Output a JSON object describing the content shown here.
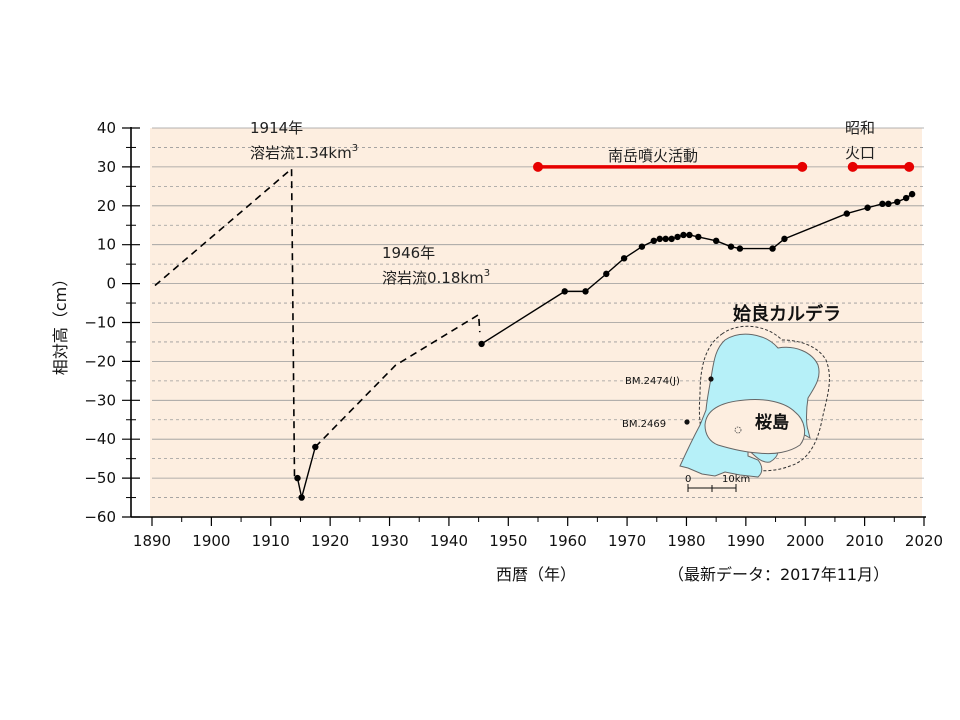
{
  "chart_data": {
    "type": "line",
    "x_range": [
      1890,
      2020
    ],
    "y_range": [
      -60,
      40
    ],
    "ylabel": "相対高（cm）",
    "xlabel": "西暦（年）",
    "note": "（最新データ：2017年11月）",
    "x_ticks": [
      1890,
      1900,
      1910,
      1920,
      1930,
      1940,
      1950,
      1960,
      1970,
      1980,
      1990,
      2000,
      2010,
      2020
    ],
    "y_ticks": [
      40,
      30,
      20,
      10,
      0,
      -10,
      -20,
      -30,
      -40,
      -50,
      -60
    ],
    "tick_label_text": {
      "x": [
        "1890",
        "1900",
        "1910",
        "1920",
        "1930",
        "1940",
        "1950",
        "1960",
        "1970",
        "1980",
        "1990",
        "2000",
        "2010",
        "2020"
      ],
      "y": [
        "40",
        "30",
        "20",
        "10",
        "0",
        "−10",
        "−20",
        "−30",
        "−40",
        "−50",
        "−60"
      ]
    },
    "dashed_segments": [
      [
        [
          1890.5,
          -0.5
        ],
        [
          1913.5,
          29.5
        ],
        [
          1914,
          -50.5
        ]
      ],
      [
        [
          1917.5,
          -42
        ],
        [
          1931,
          -21
        ],
        [
          1945,
          -8
        ],
        [
          1945.2,
          -12.5
        ]
      ]
    ],
    "solid_points": [
      [
        1914.5,
        -50
      ],
      [
        1915.2,
        -55
      ],
      [
        1917.5,
        -42
      ],
      [
        1945.5,
        -15.5
      ],
      [
        1959.5,
        -2
      ],
      [
        1963,
        -2
      ],
      [
        1966.5,
        2.5
      ],
      [
        1969.5,
        6.5
      ],
      [
        1972.5,
        9.5
      ],
      [
        1974.5,
        11
      ],
      [
        1975.5,
        11.5
      ],
      [
        1976.5,
        11.5
      ],
      [
        1977.5,
        11.5
      ],
      [
        1978.5,
        12
      ],
      [
        1979.5,
        12.5
      ],
      [
        1980.5,
        12.5
      ],
      [
        1982,
        12
      ],
      [
        1985,
        11
      ],
      [
        1987.5,
        9.5
      ],
      [
        1989,
        9
      ],
      [
        1994.5,
        9
      ],
      [
        1996.5,
        11.5
      ],
      [
        2007,
        18
      ],
      [
        2010.5,
        19.5
      ],
      [
        2013,
        20.5
      ],
      [
        2014,
        20.5
      ],
      [
        2015.5,
        21
      ],
      [
        2017,
        22
      ],
      [
        2018,
        23
      ]
    ],
    "periods": [
      {
        "label": "南岳噴火活動",
        "start": 1955,
        "end": 1999.5,
        "y": 30,
        "color": "#e60000"
      },
      {
        "label_lines": [
          "昭和",
          "火口"
        ],
        "start": 2008,
        "end": 2017.5,
        "y": 30,
        "color": "#e60000"
      }
    ],
    "annotations": [
      {
        "lines": [
          "1914年",
          "溶岩流1.34km",
          "3"
        ],
        "x": 1914
      },
      {
        "lines": [
          "1946年",
          "溶岩流0.18km",
          "3"
        ],
        "x": 1946
      }
    ],
    "inset_map": {
      "title": "姶良カルデラ",
      "island_label": "桜島",
      "benchmarks": [
        "BM.2474(J)",
        "BM.2469"
      ],
      "scale_labels": [
        "0",
        "10km"
      ]
    },
    "colors": {
      "plot_bg": "#fdeee0",
      "grid": "#999999",
      "water": "#b6f0f8",
      "line": "#000000"
    },
    "grid": true,
    "legend": "none"
  }
}
